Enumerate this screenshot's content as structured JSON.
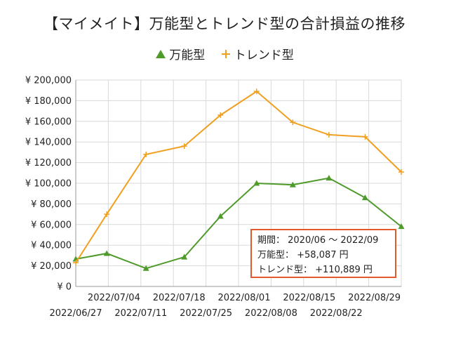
{
  "title": "【マイメイト】万能型とトレンド型の合計損益の推移",
  "summary": {
    "period": "期間： 2020/06 ～ 2022/09",
    "line1": "万能型： +58,087 円",
    "line2": "トレンド型： +110,889 円",
    "border_color": "#e25a2b"
  },
  "chart_data": {
    "type": "line",
    "title": "【マイメイト】万能型とトレンド型の合計損益の推移",
    "x": [
      "2022/06/27",
      "2022/07/04",
      "2022/07/11",
      "2022/07/18",
      "2022/07/25",
      "2022/08/01",
      "2022/08/08",
      "2022/08/15",
      "2022/08/22",
      "2022/08/29"
    ],
    "x_numeric": [
      0,
      7,
      14,
      21,
      28,
      35,
      42,
      49,
      56,
      63
    ],
    "series": [
      {
        "name": "万能型",
        "color": "#4e9a2a",
        "marker": "triangle",
        "x": [
          0,
          3,
          6.8,
          10.5,
          14,
          17.5,
          21,
          24.5,
          28,
          31.5
        ],
        "values": [
          26500,
          32000,
          17500,
          28500,
          68000,
          100000,
          98500,
          105000,
          86000,
          58087
        ]
      },
      {
        "name": "トレンド型",
        "color": "#f0a020",
        "marker": "plus",
        "x": [
          0,
          3,
          6.8,
          10.5,
          14,
          17.5,
          21,
          24.5,
          28,
          31.5
        ],
        "values": [
          23000,
          70000,
          128000,
          136000,
          166000,
          189000,
          159000,
          147000,
          145000,
          110889
        ]
      }
    ],
    "xlim": [
      0,
      31.5
    ],
    "ylim": [
      0,
      200000
    ],
    "y_ticks": [
      0,
      20000,
      40000,
      60000,
      80000,
      100000,
      120000,
      140000,
      160000,
      180000,
      200000
    ],
    "y_tick_labels": [
      "¥ 0",
      "¥ 20,000",
      "¥ 40,000",
      "¥ 60,000",
      "¥ 80,000",
      "¥ 100,000",
      "¥ 120,000",
      "¥ 140,000",
      "¥ 160,000",
      "¥ 180,000",
      "¥ 200,000"
    ],
    "x_tick_labels_upper": [
      "2022/07/04",
      "2022/07/18",
      "2022/08/01",
      "2022/08/15",
      "2022/08/29"
    ],
    "x_tick_labels_lower": [
      "2022/06/27",
      "2022/07/11",
      "2022/07/25",
      "2022/08/08",
      "2022/08/22"
    ],
    "grid": true,
    "legend_position": "top-center"
  }
}
